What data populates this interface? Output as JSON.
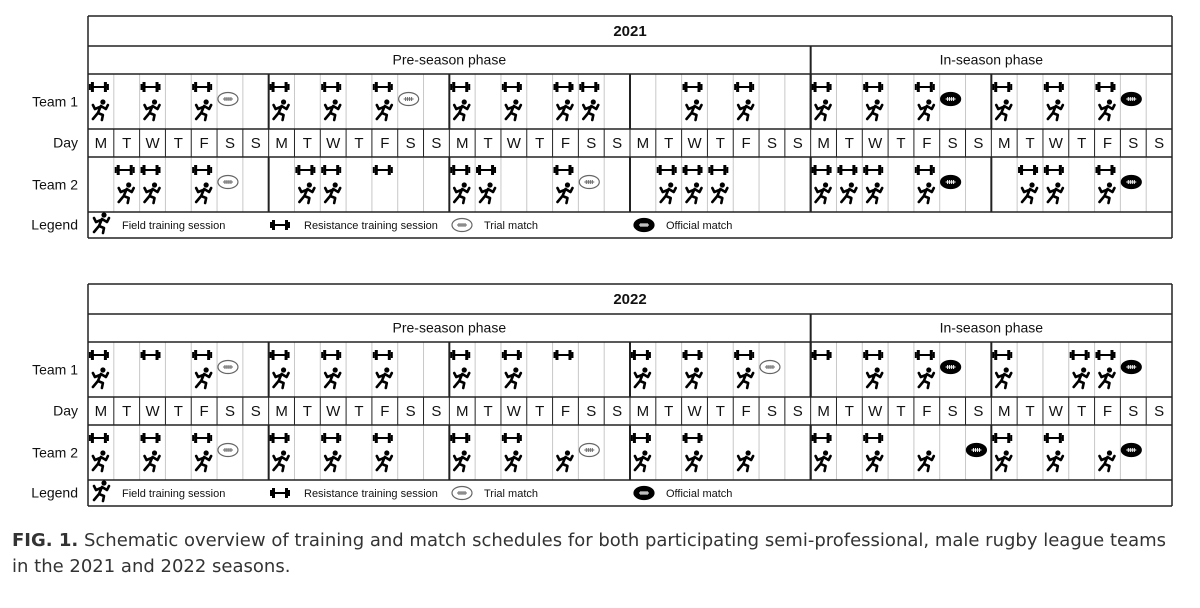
{
  "panels": [
    {
      "title": "2021",
      "phases": [
        {
          "label": "Pre-season phase",
          "weeks": 4
        },
        {
          "label": "In-season phase",
          "weeks": 2
        }
      ],
      "teams": [
        {
          "label": "Team 1",
          "sessions": [
            [
              [
                1,
                0
              ],
              [],
              [
                1,
                0
              ],
              [],
              [
                1,
                0
              ],
              [
                2
              ],
              []
            ],
            [
              [
                1,
                0
              ],
              [],
              [
                1,
                0
              ],
              [],
              [
                1,
                0
              ],
              [
                2
              ],
              []
            ],
            [
              [
                1,
                0
              ],
              [],
              [
                1,
                0
              ],
              [],
              [
                1,
                0
              ],
              [
                1,
                0
              ],
              []
            ],
            [
              [],
              [],
              [
                1,
                0
              ],
              [],
              [
                1,
                0
              ],
              [],
              []
            ],
            [
              [
                1,
                0
              ],
              [],
              [
                1,
                0
              ],
              [],
              [
                1,
                0
              ],
              [
                3
              ],
              []
            ],
            [
              [
                1,
                0
              ],
              [],
              [
                1,
                0
              ],
              [],
              [
                1,
                0
              ],
              [
                3
              ],
              []
            ]
          ]
        },
        {
          "label": "Team 2",
          "sessions": [
            [
              [],
              [
                1,
                0
              ],
              [
                1,
                0
              ],
              [],
              [
                1,
                0
              ],
              [
                2
              ],
              []
            ],
            [
              [],
              [
                1,
                0
              ],
              [
                1,
                0
              ],
              [],
              [
                1
              ],
              [],
              []
            ],
            [
              [
                1,
                0
              ],
              [
                1,
                0
              ],
              [],
              [],
              [
                1,
                0
              ],
              [
                2
              ],
              []
            ],
            [
              [],
              [
                1,
                0
              ],
              [
                1,
                0
              ],
              [
                1,
                0
              ],
              [],
              [],
              []
            ],
            [
              [
                1,
                0
              ],
              [
                1,
                0
              ],
              [
                1,
                0
              ],
              [],
              [
                1,
                0
              ],
              [
                3
              ],
              []
            ],
            [
              [],
              [
                1,
                0
              ],
              [
                1,
                0
              ],
              [],
              [
                1,
                0
              ],
              [
                3
              ],
              []
            ]
          ]
        }
      ]
    },
    {
      "title": "2022",
      "phases": [
        {
          "label": "Pre-season phase",
          "weeks": 4
        },
        {
          "label": "In-season phase",
          "weeks": 2
        }
      ],
      "teams": [
        {
          "label": "Team 1",
          "sessions": [
            [
              [
                1,
                0
              ],
              [],
              [
                1
              ],
              [],
              [
                1,
                0
              ],
              [
                2
              ],
              []
            ],
            [
              [
                1,
                0
              ],
              [],
              [
                1,
                0
              ],
              [],
              [
                1,
                0
              ],
              [],
              []
            ],
            [
              [
                1,
                0
              ],
              [],
              [
                1,
                0
              ],
              [],
              [
                1
              ],
              [],
              []
            ],
            [
              [
                1,
                0
              ],
              [],
              [
                1,
                0
              ],
              [],
              [
                1,
                0
              ],
              [
                2
              ],
              []
            ],
            [
              [
                1
              ],
              [],
              [
                1,
                0
              ],
              [],
              [
                1,
                0
              ],
              [
                3
              ],
              []
            ],
            [
              [
                1,
                0
              ],
              [],
              [],
              [
                1,
                0
              ],
              [
                1,
                0
              ],
              [
                3
              ],
              []
            ]
          ]
        },
        {
          "label": "Team 2",
          "sessions": [
            [
              [
                1,
                0
              ],
              [],
              [
                1,
                0
              ],
              [],
              [
                1,
                0
              ],
              [
                2
              ],
              []
            ],
            [
              [
                1,
                0
              ],
              [],
              [
                1,
                0
              ],
              [],
              [
                1,
                0
              ],
              [],
              []
            ],
            [
              [
                1,
                0
              ],
              [],
              [
                1,
                0
              ],
              [],
              [
                0
              ],
              [
                2
              ],
              []
            ],
            [
              [
                1,
                0
              ],
              [],
              [
                1,
                0
              ],
              [],
              [
                0
              ],
              [],
              []
            ],
            [
              [
                1,
                0
              ],
              [],
              [
                1,
                0
              ],
              [],
              [
                0
              ],
              [],
              [
                3
              ]
            ],
            [
              [
                1,
                0
              ],
              [],
              [
                1,
                0
              ],
              [],
              [
                0
              ],
              [
                3
              ],
              []
            ]
          ]
        }
      ]
    }
  ],
  "day_label": "Day",
  "days": [
    "M",
    "T",
    "W",
    "T",
    "F",
    "S",
    "S"
  ],
  "legend_label": "Legend",
  "legend": [
    "Field training session",
    "Resistance training session",
    "Trial match",
    "Official match"
  ],
  "caption": {
    "label": "FIG. 1.",
    "text": "Schematic overview of training and match schedules for both participating semi-professional, male rugby league teams in the 2021 and 2022 seasons."
  }
}
